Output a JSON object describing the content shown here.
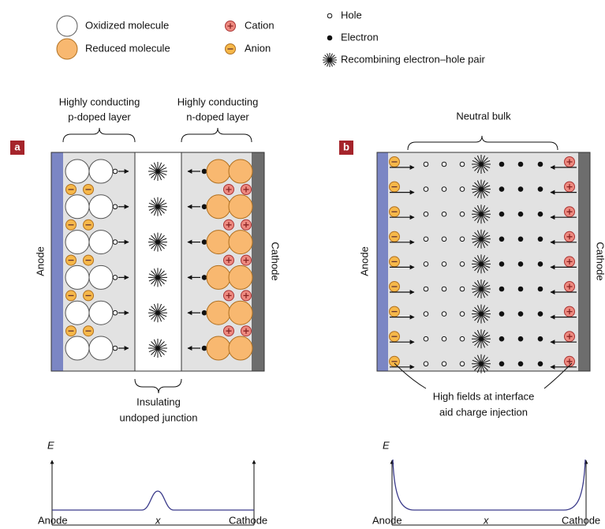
{
  "legend": {
    "oxidized": "Oxidized molecule",
    "reduced": "Reduced molecule",
    "cation": "Cation",
    "anion": "Anion",
    "hole": "Hole",
    "electron": "Electron",
    "recombining": "Recombining electron–hole pair"
  },
  "panel_a": {
    "label": "a",
    "p_layer": [
      "Highly conducting",
      "p-doped layer"
    ],
    "n_layer": [
      "Highly conducting",
      "n-doped layer"
    ],
    "anode": "Anode",
    "cathode": "Cathode",
    "junction": [
      "Insulating",
      "undoped junction"
    ],
    "graph": {
      "y_label": "E",
      "x_label": "x",
      "left": "Anode",
      "right": "Cathode"
    }
  },
  "panel_b": {
    "label": "b",
    "bulk": "Neutral bulk",
    "anode": "Anode",
    "cathode": "Cathode",
    "note": [
      "High fields at interface",
      "aid charge injection"
    ],
    "graph": {
      "y_label": "E",
      "x_label": "x",
      "left": "Anode",
      "right": "Cathode"
    }
  }
}
